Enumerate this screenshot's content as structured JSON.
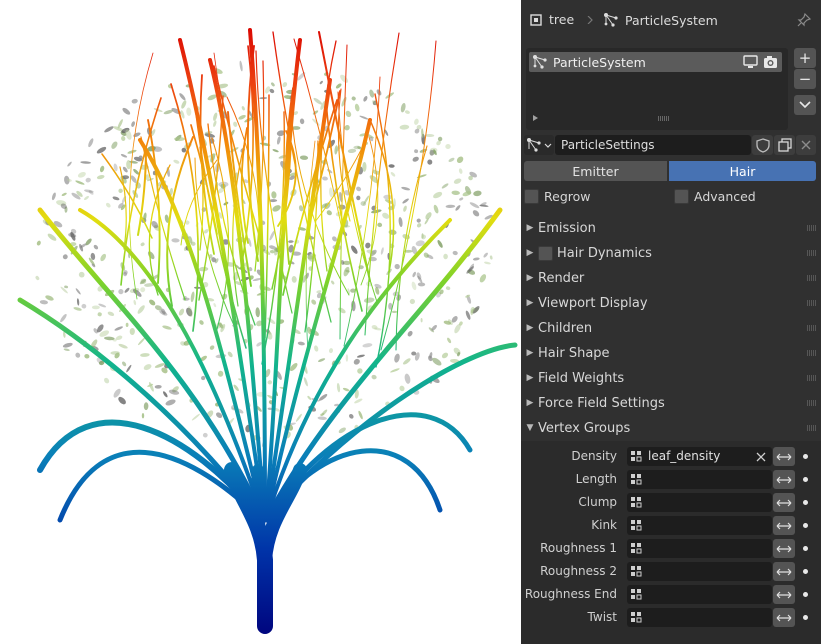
{
  "header": {
    "object_name": "tree",
    "modifier_name": "ParticleSystem"
  },
  "particle_list": {
    "items": [
      {
        "label": "ParticleSystem"
      }
    ]
  },
  "settings": {
    "datablock": "ParticleSettings"
  },
  "type_tabs": [
    {
      "label": "Emitter",
      "active": false
    },
    {
      "label": "Hair",
      "active": true
    }
  ],
  "options": {
    "regrow": "Regrow",
    "advanced": "Advanced"
  },
  "panels": [
    {
      "label": "Emission",
      "expanded": false,
      "has_checkbox": false
    },
    {
      "label": "Hair Dynamics",
      "expanded": false,
      "has_checkbox": true
    },
    {
      "label": "Render",
      "expanded": false,
      "has_checkbox": false
    },
    {
      "label": "Viewport Display",
      "expanded": false,
      "has_checkbox": false
    },
    {
      "label": "Children",
      "expanded": false,
      "has_checkbox": false
    },
    {
      "label": "Hair Shape",
      "expanded": false,
      "has_checkbox": false
    },
    {
      "label": "Field Weights",
      "expanded": false,
      "has_checkbox": false
    },
    {
      "label": "Force Field Settings",
      "expanded": false,
      "has_checkbox": false
    },
    {
      "label": "Vertex Groups",
      "expanded": true,
      "has_checkbox": false
    }
  ],
  "vertex_groups": [
    {
      "label": "Density",
      "value": "leaf_density"
    },
    {
      "label": "Length",
      "value": ""
    },
    {
      "label": "Clump",
      "value": ""
    },
    {
      "label": "Kink",
      "value": ""
    },
    {
      "label": "Roughness 1",
      "value": ""
    },
    {
      "label": "Roughness 2",
      "value": ""
    },
    {
      "label": "Roughness End",
      "value": ""
    },
    {
      "label": "Twist",
      "value": ""
    }
  ],
  "colors": {
    "panel_bg": "#303030",
    "field_bg": "#1d1d1d",
    "active_tab": "#4772b3",
    "inactive_tab": "#545454",
    "selected_row": "#5b5b5b"
  }
}
